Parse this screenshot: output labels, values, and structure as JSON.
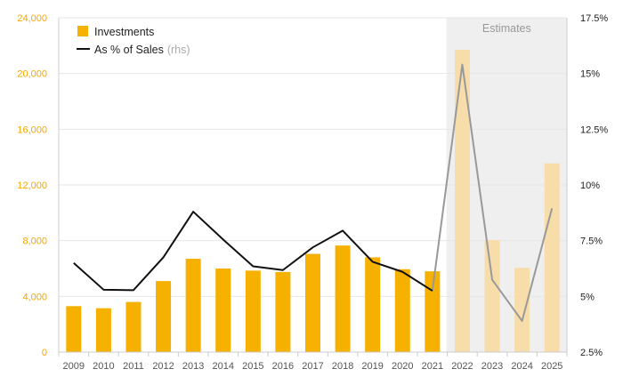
{
  "chart_data": {
    "type": "bar",
    "categories": [
      "2009",
      "2010",
      "2011",
      "2012",
      "2013",
      "2014",
      "2015",
      "2016",
      "2017",
      "2018",
      "2019",
      "2020",
      "2021",
      "2022",
      "2023",
      "2024",
      "2025"
    ],
    "series": [
      {
        "name": "Investments",
        "kind": "bar",
        "axis": "left",
        "color": "#f5b000",
        "estimate_color": "#f7ddaa",
        "values": [
          3300,
          3150,
          3600,
          5100,
          6700,
          6000,
          5850,
          5750,
          7050,
          7650,
          6800,
          5950,
          5800,
          21700,
          8050,
          6050,
          13550
        ]
      },
      {
        "name": "As % of Sales",
        "name_suffix": "(rhs)",
        "kind": "line",
        "axis": "right",
        "color": "#111111",
        "estimate_color": "#999999",
        "values": [
          6.5,
          5.3,
          5.28,
          6.75,
          8.8,
          7.55,
          6.35,
          6.18,
          7.2,
          7.95,
          6.55,
          6.1,
          5.25,
          15.4,
          5.75,
          3.9,
          8.95
        ]
      }
    ],
    "estimate_start": "2022",
    "estimate_label": "Estimates",
    "ylim": [
      0,
      24000
    ],
    "y_ticks": [
      0,
      4000,
      8000,
      12000,
      16000,
      20000,
      24000
    ],
    "y_tick_labels": [
      "0",
      "4,000",
      "8,000",
      "12,000",
      "16,000",
      "20,000",
      "24,000"
    ],
    "y2lim": [
      2.5,
      17.5
    ],
    "y2_ticks": [
      2.5,
      5,
      7.5,
      10,
      12.5,
      15,
      17.5
    ],
    "y2_tick_labels": [
      "2.5%",
      "5%",
      "7.5%",
      "10%",
      "12.5%",
      "15%",
      "17.5%"
    ],
    "grid": true,
    "legend_position": "top-left"
  }
}
